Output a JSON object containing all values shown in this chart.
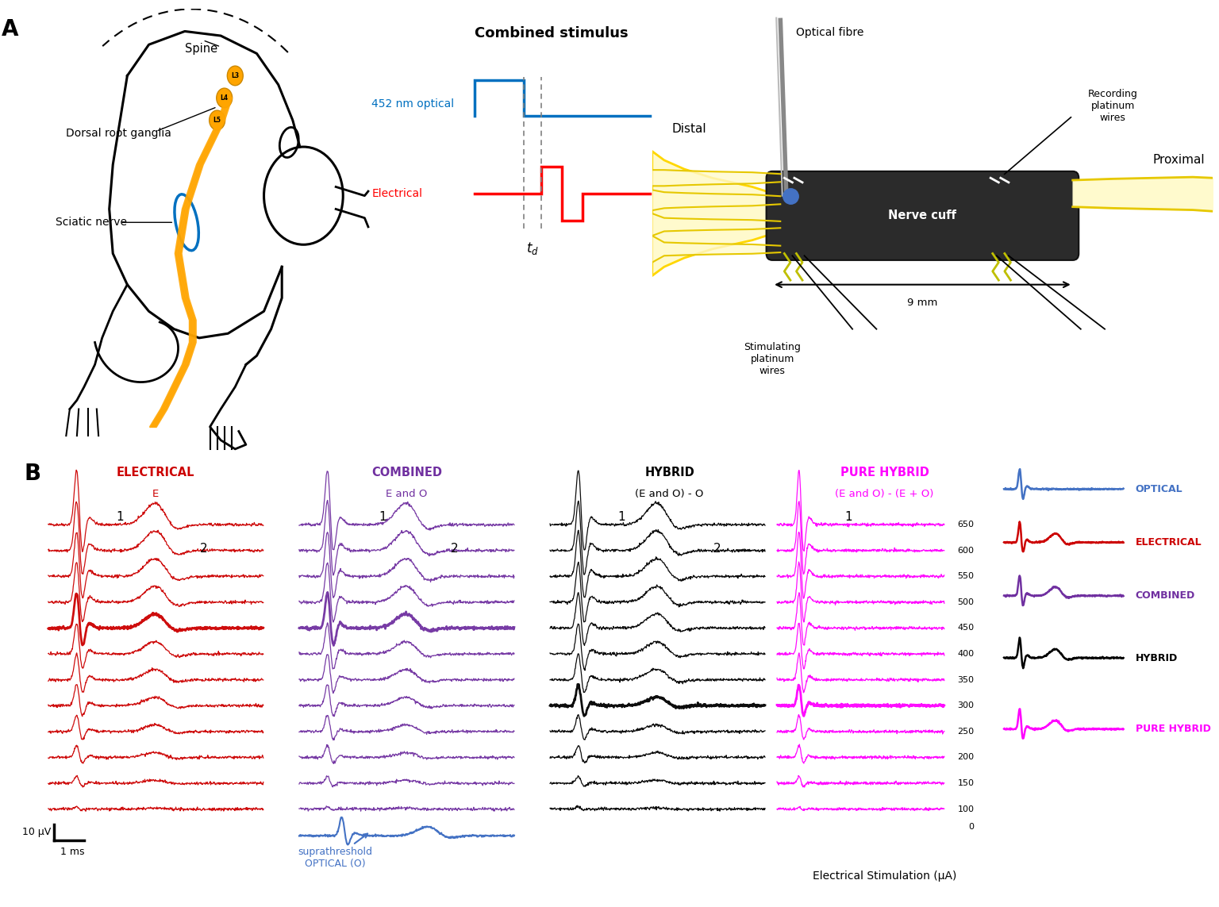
{
  "figure_width": 15.36,
  "figure_height": 11.43,
  "bg_color": "#ffffff",
  "panel_A_label": "A",
  "panel_B_label": "B",
  "combined_stimulus_title": "Combined stimulus",
  "optical_label": "452 nm optical",
  "electrical_label": "Electrical",
  "optical_color": "#0070c0",
  "electrical_color": "#ff0000",
  "optical_fibre_label": "Optical fibre",
  "nerve_cuff_label": "Nerve cuff",
  "distal_label": "Distal",
  "proximal_label": "Proximal",
  "stim_wires_label": "Stimulating\nplatinum\nwires",
  "rec_wires_label": "Recording\nplatinum\nwires",
  "nine_mm_label": "9 mm",
  "spine_label": "Spine",
  "drg_label": "Dorsal root ganglia",
  "sciatic_label": "Sciatic nerve",
  "L_labels": [
    "L3",
    "L4",
    "L5"
  ],
  "nerve_color": "#ffd700",
  "nerve_fill_color": "#fffacd",
  "nerve_cuff_color": "#2b2b2b",
  "electrical_title": "ELECTRICAL",
  "electrical_sub": "E",
  "combined_title": "COMBINED",
  "combined_sub": "E and O",
  "hybrid_title": "HYBRID",
  "hybrid_sub": "(E and O) - O",
  "pure_hybrid_title": "PURE HYBRID",
  "pure_hybrid_sub": "(E and O) - (E + O)",
  "elec_color": "#cc0000",
  "comb_color": "#7030a0",
  "hybrid_color": "#000000",
  "pure_hybrid_color": "#ff00ff",
  "y_scale_label": "10 μV",
  "x_scale_label": "1 ms",
  "x_axis_label": "Electrical Stimulation (μA)",
  "suprathreshold_label": "suprathreshold\nOPTICAL (O)",
  "suprathreshold_color": "#4472c4",
  "current_levels": [
    650,
    600,
    550,
    500,
    450,
    400,
    350,
    300,
    250,
    200,
    150,
    100
  ],
  "legend_labels": [
    "OPTICAL",
    "ELECTRICAL",
    "COMBINED",
    "HYBRID",
    "PURE HYBRID"
  ],
  "legend_colors": [
    "#4472c4",
    "#cc0000",
    "#7030a0",
    "#000000",
    "#ff00ff"
  ]
}
